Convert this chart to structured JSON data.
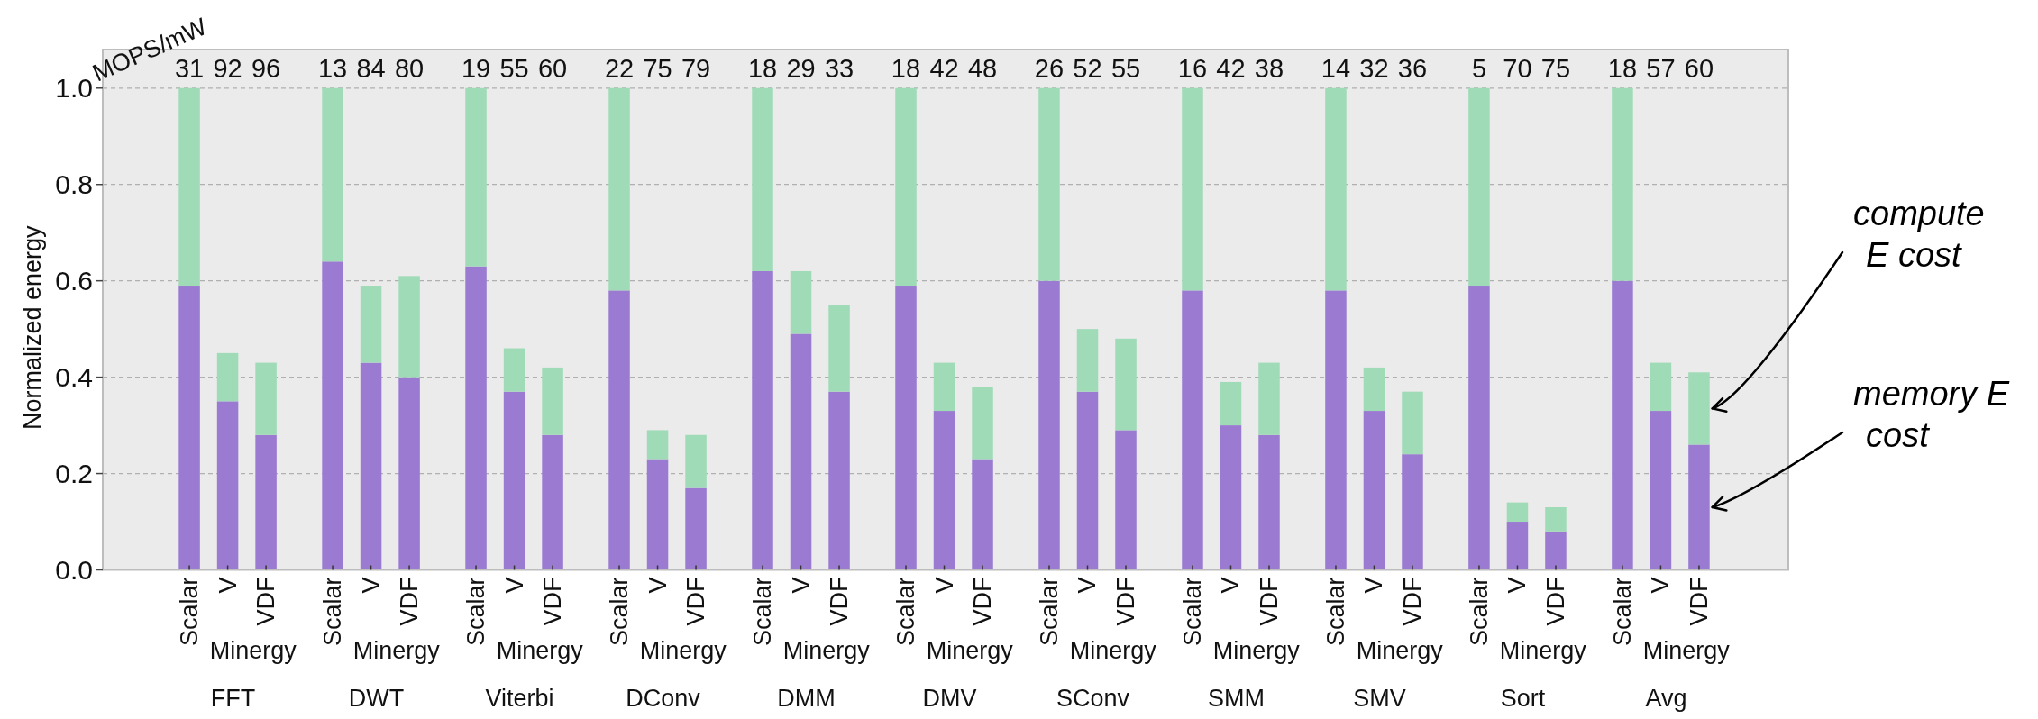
{
  "chart_data": {
    "type": "bar",
    "stacked": true,
    "categories": [
      "Scalar",
      "V",
      "VDF",
      "Scalar",
      "V",
      "VDF",
      "Scalar",
      "V",
      "VDF",
      "Scalar",
      "V",
      "VDF",
      "Scalar",
      "V",
      "VDF",
      "Scalar",
      "V",
      "VDF",
      "Scalar",
      "V",
      "VDF",
      "Scalar",
      "V",
      "VDF",
      "Scalar",
      "V",
      "VDF",
      "Scalar",
      "V",
      "VDF",
      "Scalar",
      "V",
      "VDF"
    ],
    "series": [
      {
        "name": "memory E cost",
        "color": "#9b7bd1",
        "values": [
          0.59,
          0.35,
          0.28,
          0.64,
          0.43,
          0.4,
          0.63,
          0.37,
          0.28,
          0.58,
          0.23,
          0.17,
          0.62,
          0.49,
          0.37,
          0.59,
          0.33,
          0.23,
          0.6,
          0.37,
          0.29,
          0.58,
          0.3,
          0.28,
          0.58,
          0.33,
          0.24,
          0.59,
          0.1,
          0.08,
          0.6,
          0.33,
          0.26
        ]
      },
      {
        "name": "compute E cost",
        "color": "#a0dbb7",
        "values": [
          0.41,
          0.1,
          0.15,
          0.36,
          0.16,
          0.21,
          0.37,
          0.09,
          0.14,
          0.42,
          0.06,
          0.11,
          0.38,
          0.13,
          0.18,
          0.41,
          0.1,
          0.15,
          0.4,
          0.13,
          0.19,
          0.42,
          0.09,
          0.15,
          0.42,
          0.09,
          0.13,
          0.41,
          0.04,
          0.05,
          0.4,
          0.1,
          0.15
        ]
      }
    ],
    "ylabel": "Normalized energy",
    "ylim": [
      0,
      1.08
    ],
    "yticks": [
      {
        "value": 0,
        "label": "0.0"
      },
      0.2,
      0.4,
      0.6,
      0.8,
      {
        "value": 1,
        "label": "1.0"
      }
    ],
    "grid": "y",
    "annotations": [
      "MOPS/mW",
      "31",
      "92",
      "96",
      "13",
      "84",
      "80",
      "19",
      "55",
      "60",
      "22",
      "75",
      "79",
      "18",
      "29",
      "33",
      "18",
      "42",
      "48",
      "26",
      "52",
      "55",
      "16",
      "42",
      "38",
      "14",
      "32",
      "36",
      "5",
      "70",
      "75",
      "18",
      "57",
      "60",
      "Minergy",
      "Minergy",
      "Minergy",
      "Minergy",
      "Minergy",
      "Minergy",
      "Minergy",
      "Minergy",
      "Minergy",
      "Minergy",
      "Minergy",
      "FFT",
      "DWT",
      "Viterbi",
      "DConv",
      "DMM",
      "DMV",
      "SConv",
      "SMM",
      "SMV",
      "Sort",
      "Avg"
    ]
  }
}
